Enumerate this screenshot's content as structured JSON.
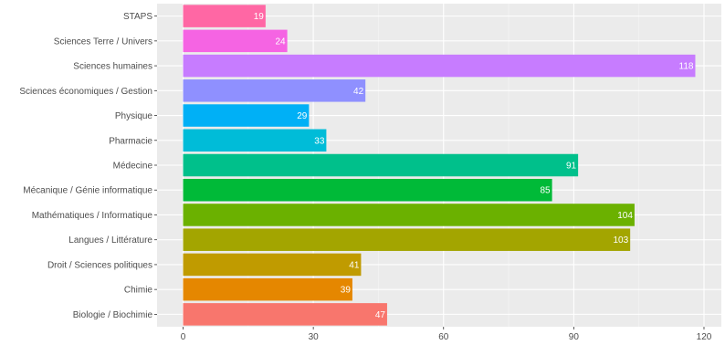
{
  "chart_data": {
    "type": "bar",
    "orientation": "horizontal",
    "categories": [
      "Biologie / Biochimie",
      "Chimie",
      "Droit / Sciences politiques",
      "Langues / Littérature",
      "Mathématiques / Informatique",
      "Mécanique / Génie informatique",
      "Médecine",
      "Pharmacie",
      "Physique",
      "Sciences économiques / Gestion",
      "Sciences humaines",
      "Sciences Terre / Univers",
      "STAPS"
    ],
    "values": [
      47,
      39,
      41,
      103,
      104,
      85,
      91,
      33,
      29,
      42,
      118,
      24,
      19
    ],
    "colors": [
      "#F8766D",
      "#E58700",
      "#C09B00",
      "#A3A500",
      "#6BB100",
      "#00BA38",
      "#00C08B",
      "#00BCD8",
      "#00B0F6",
      "#8F90FF",
      "#C77CFF",
      "#F564E3",
      "#FF67A4"
    ],
    "xticks": [
      0,
      30,
      60,
      90,
      120
    ],
    "xlim": [
      -6,
      124
    ],
    "grid": true,
    "legend": "none",
    "title": "",
    "xlabel": "",
    "ylabel": ""
  }
}
